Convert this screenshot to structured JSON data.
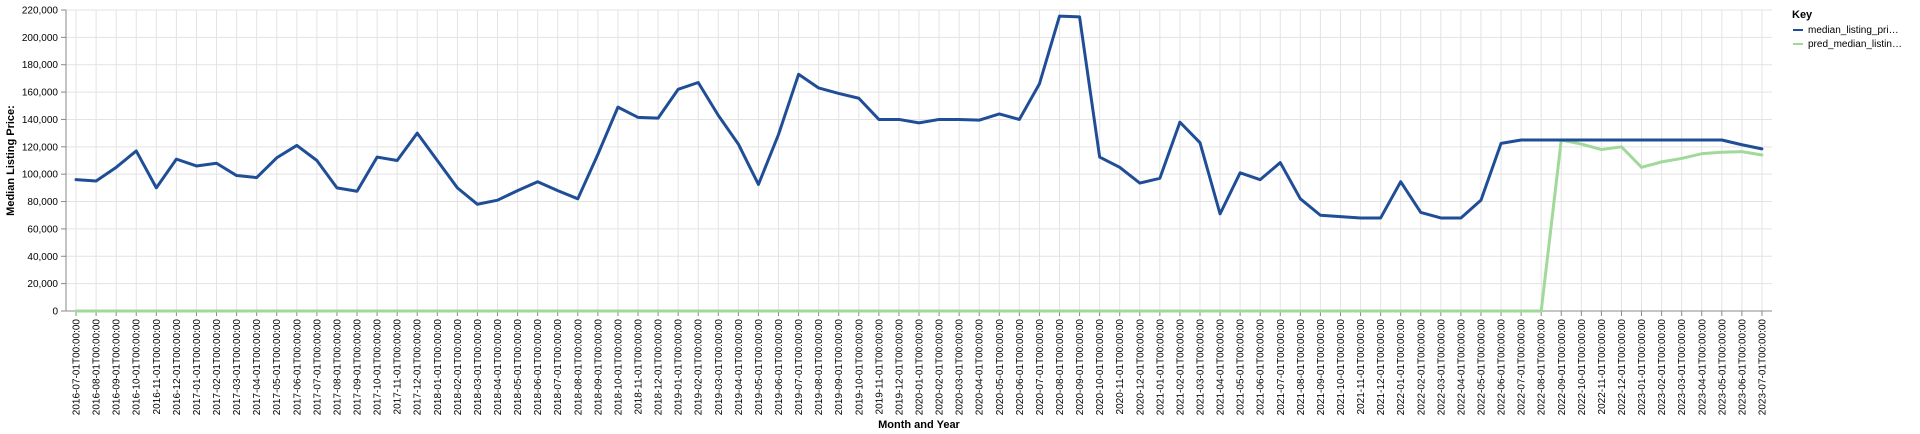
{
  "chart_data": {
    "type": "line",
    "xlabel": "Month and Year",
    "ylabel": "Median Listing Price:",
    "ylim": [
      0,
      220000
    ],
    "yticks": [
      "0",
      "20,000",
      "40,000",
      "60,000",
      "80,000",
      "100,000",
      "120,000",
      "140,000",
      "160,000",
      "180,000",
      "200,000",
      "220,000"
    ],
    "grid": true,
    "legend": {
      "title": "Key",
      "placement": "right",
      "items": [
        "median_listing_pri…",
        "pred_median_listin…"
      ]
    },
    "x": [
      "2016-07-01T00:00:00",
      "2016-08-01T00:00:00",
      "2016-09-01T00:00:00",
      "2016-10-01T00:00:00",
      "2016-11-01T00:00:00",
      "2016-12-01T00:00:00",
      "2017-01-01T00:00:00",
      "2017-02-01T00:00:00",
      "2017-03-01T00:00:00",
      "2017-04-01T00:00:00",
      "2017-05-01T00:00:00",
      "2017-06-01T00:00:00",
      "2017-07-01T00:00:00",
      "2017-08-01T00:00:00",
      "2017-09-01T00:00:00",
      "2017-10-01T00:00:00",
      "2017-11-01T00:00:00",
      "2017-12-01T00:00:00",
      "2018-01-01T00:00:00",
      "2018-02-01T00:00:00",
      "2018-03-01T00:00:00",
      "2018-04-01T00:00:00",
      "2018-05-01T00:00:00",
      "2018-06-01T00:00:00",
      "2018-07-01T00:00:00",
      "2018-08-01T00:00:00",
      "2018-09-01T00:00:00",
      "2018-10-01T00:00:00",
      "2018-11-01T00:00:00",
      "2018-12-01T00:00:00",
      "2019-01-01T00:00:00",
      "2019-02-01T00:00:00",
      "2019-03-01T00:00:00",
      "2019-04-01T00:00:00",
      "2019-05-01T00:00:00",
      "2019-06-01T00:00:00",
      "2019-07-01T00:00:00",
      "2019-08-01T00:00:00",
      "2019-09-01T00:00:00",
      "2019-10-01T00:00:00",
      "2019-11-01T00:00:00",
      "2019-12-01T00:00:00",
      "2020-01-01T00:00:00",
      "2020-02-01T00:00:00",
      "2020-03-01T00:00:00",
      "2020-04-01T00:00:00",
      "2020-05-01T00:00:00",
      "2020-06-01T00:00:00",
      "2020-07-01T00:00:00",
      "2020-08-01T00:00:00",
      "2020-09-01T00:00:00",
      "2020-10-01T00:00:00",
      "2020-11-01T00:00:00",
      "2020-12-01T00:00:00",
      "2021-01-01T00:00:00",
      "2021-02-01T00:00:00",
      "2021-03-01T00:00:00",
      "2021-04-01T00:00:00",
      "2021-05-01T00:00:00",
      "2021-06-01T00:00:00",
      "2021-07-01T00:00:00",
      "2021-08-01T00:00:00",
      "2021-09-01T00:00:00",
      "2021-10-01T00:00:00",
      "2021-11-01T00:00:00",
      "2021-12-01T00:00:00",
      "2022-01-01T00:00:00",
      "2022-02-01T00:00:00",
      "2022-03-01T00:00:00",
      "2022-04-01T00:00:00",
      "2022-05-01T00:00:00",
      "2022-06-01T00:00:00",
      "2022-07-01T00:00:00",
      "2022-08-01T00:00:00",
      "2022-09-01T00:00:00",
      "2022-10-01T00:00:00",
      "2022-11-01T00:00:00",
      "2022-12-01T00:00:00",
      "2023-01-01T00:00:00",
      "2023-02-01T00:00:00",
      "2023-03-01T00:00:00",
      "2023-04-01T00:00:00",
      "2023-05-01T00:00:00",
      "2023-06-01T00:00:00",
      "2023-07-01T00:00:00"
    ],
    "series": [
      {
        "name": "median_listing_pri…",
        "color": "#1f4e97",
        "values": [
          96000,
          95000,
          105000,
          117000,
          90000,
          111000,
          106000,
          108000,
          99000,
          97500,
          112000,
          121000,
          110000,
          90000,
          87500,
          112500,
          110000,
          130000,
          110000,
          90000,
          78000,
          81000,
          88000,
          94500,
          88000,
          82000,
          114500,
          149000,
          141500,
          141000,
          162000,
          167000,
          143000,
          122000,
          92500,
          129000,
          173000,
          163000,
          159000,
          155500,
          140000,
          140000,
          137500,
          140000,
          140000,
          139500,
          144000,
          140000,
          166000,
          215500,
          215000,
          112500,
          105000,
          93500,
          97000,
          138000,
          123000,
          71000,
          101000,
          96000,
          108500,
          82000,
          70000,
          69000,
          68000,
          68000,
          94500,
          72000,
          68000,
          68000,
          81000,
          122500,
          125000,
          125000,
          125000,
          125000,
          125000,
          125000,
          125000,
          125000,
          125000,
          125000,
          125000,
          121500,
          118500
        ]
      },
      {
        "name": "pred_median_listin…",
        "color": "#a1d99b",
        "values": [
          0,
          0,
          0,
          0,
          0,
          0,
          0,
          0,
          0,
          0,
          0,
          0,
          0,
          0,
          0,
          0,
          0,
          0,
          0,
          0,
          0,
          0,
          0,
          0,
          0,
          0,
          0,
          0,
          0,
          0,
          0,
          0,
          0,
          0,
          0,
          0,
          0,
          0,
          0,
          0,
          0,
          0,
          0,
          0,
          0,
          0,
          0,
          0,
          0,
          0,
          0,
          0,
          0,
          0,
          0,
          0,
          0,
          0,
          0,
          0,
          0,
          0,
          0,
          0,
          0,
          0,
          0,
          0,
          0,
          0,
          0,
          0,
          0,
          0,
          125000,
          122000,
          118000,
          120000,
          105000,
          109000,
          111500,
          115000,
          116000,
          116500,
          114000
        ]
      }
    ]
  }
}
